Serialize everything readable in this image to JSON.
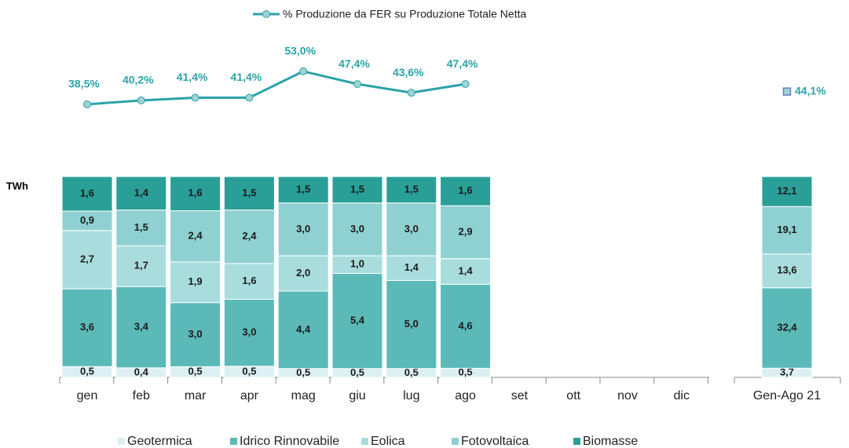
{
  "chart_data": {
    "type": "bar",
    "stack": "percent",
    "y_label": "TWh",
    "categories": [
      "gen",
      "feb",
      "mar",
      "apr",
      "mag",
      "giu",
      "lug",
      "ago",
      "set",
      "ott",
      "nov",
      "dic",
      "Gen-Ago 21"
    ],
    "series": [
      {
        "name": "Geotermica",
        "color": "#dcf0f3",
        "values": [
          0.5,
          0.4,
          0.5,
          0.5,
          0.5,
          0.5,
          0.5,
          0.5,
          null,
          null,
          null,
          null,
          3.7
        ],
        "value_labels": [
          "0,5",
          "0,4",
          "0,5",
          "0,5",
          "0,5",
          "0,5",
          "0,5",
          "0,5",
          null,
          null,
          null,
          null,
          "3,7"
        ]
      },
      {
        "name": "Idrico Rinnovabile",
        "color": "#5bbab8",
        "values": [
          3.6,
          3.4,
          3.0,
          3.0,
          4.4,
          5.4,
          5.0,
          4.6,
          null,
          null,
          null,
          null,
          32.4
        ],
        "value_labels": [
          "3,6",
          "3,4",
          "3,0",
          "3,0",
          "4,4",
          "5,4",
          "5,0",
          "4,6",
          null,
          null,
          null,
          null,
          "32,4"
        ]
      },
      {
        "name": "Eolica",
        "color": "#a9dddd",
        "values": [
          2.7,
          1.7,
          1.9,
          1.6,
          2.0,
          1.0,
          1.4,
          1.4,
          null,
          null,
          null,
          null,
          13.6
        ],
        "value_labels": [
          "2,7",
          "1,7",
          "1,9",
          "1,6",
          "2,0",
          "1,0",
          "1,4",
          "1,4",
          null,
          null,
          null,
          null,
          "13,6"
        ]
      },
      {
        "name": "Fotovoltaica",
        "color": "#8fd1d1",
        "values": [
          0.9,
          1.5,
          2.4,
          2.4,
          3.0,
          3.0,
          3.0,
          2.9,
          null,
          null,
          null,
          null,
          19.1
        ],
        "value_labels": [
          "0,9",
          "1,5",
          "2,4",
          "2,4",
          "3,0",
          "3,0",
          "3,0",
          "2,9",
          null,
          null,
          null,
          null,
          "19,1"
        ]
      },
      {
        "name": "Biomasse",
        "color": "#2a9f98",
        "values": [
          1.6,
          1.4,
          1.6,
          1.5,
          1.5,
          1.5,
          1.5,
          1.6,
          null,
          null,
          null,
          null,
          12.1
        ],
        "value_labels": [
          "1,6",
          "1,4",
          "1,6",
          "1,5",
          "1,5",
          "1,5",
          "1,5",
          "1,6",
          null,
          null,
          null,
          null,
          "12,1"
        ]
      },
      {
        "name": "% Produzione da FER su Produzione Totale Netta",
        "type": "line",
        "axis": "y2",
        "color": "#2ba3a8",
        "values": [
          38.5,
          40.2,
          41.4,
          41.4,
          53.0,
          47.4,
          43.6,
          47.4,
          null,
          null,
          null,
          null,
          44.1
        ],
        "value_labels": [
          "38,5%",
          "40,2%",
          "41,4%",
          "41,4%",
          "53,0%",
          "47,4%",
          "43,6%",
          "47,4%",
          null,
          null,
          null,
          null,
          "44,1%"
        ]
      }
    ],
    "y2lim": [
      20,
      60
    ]
  }
}
